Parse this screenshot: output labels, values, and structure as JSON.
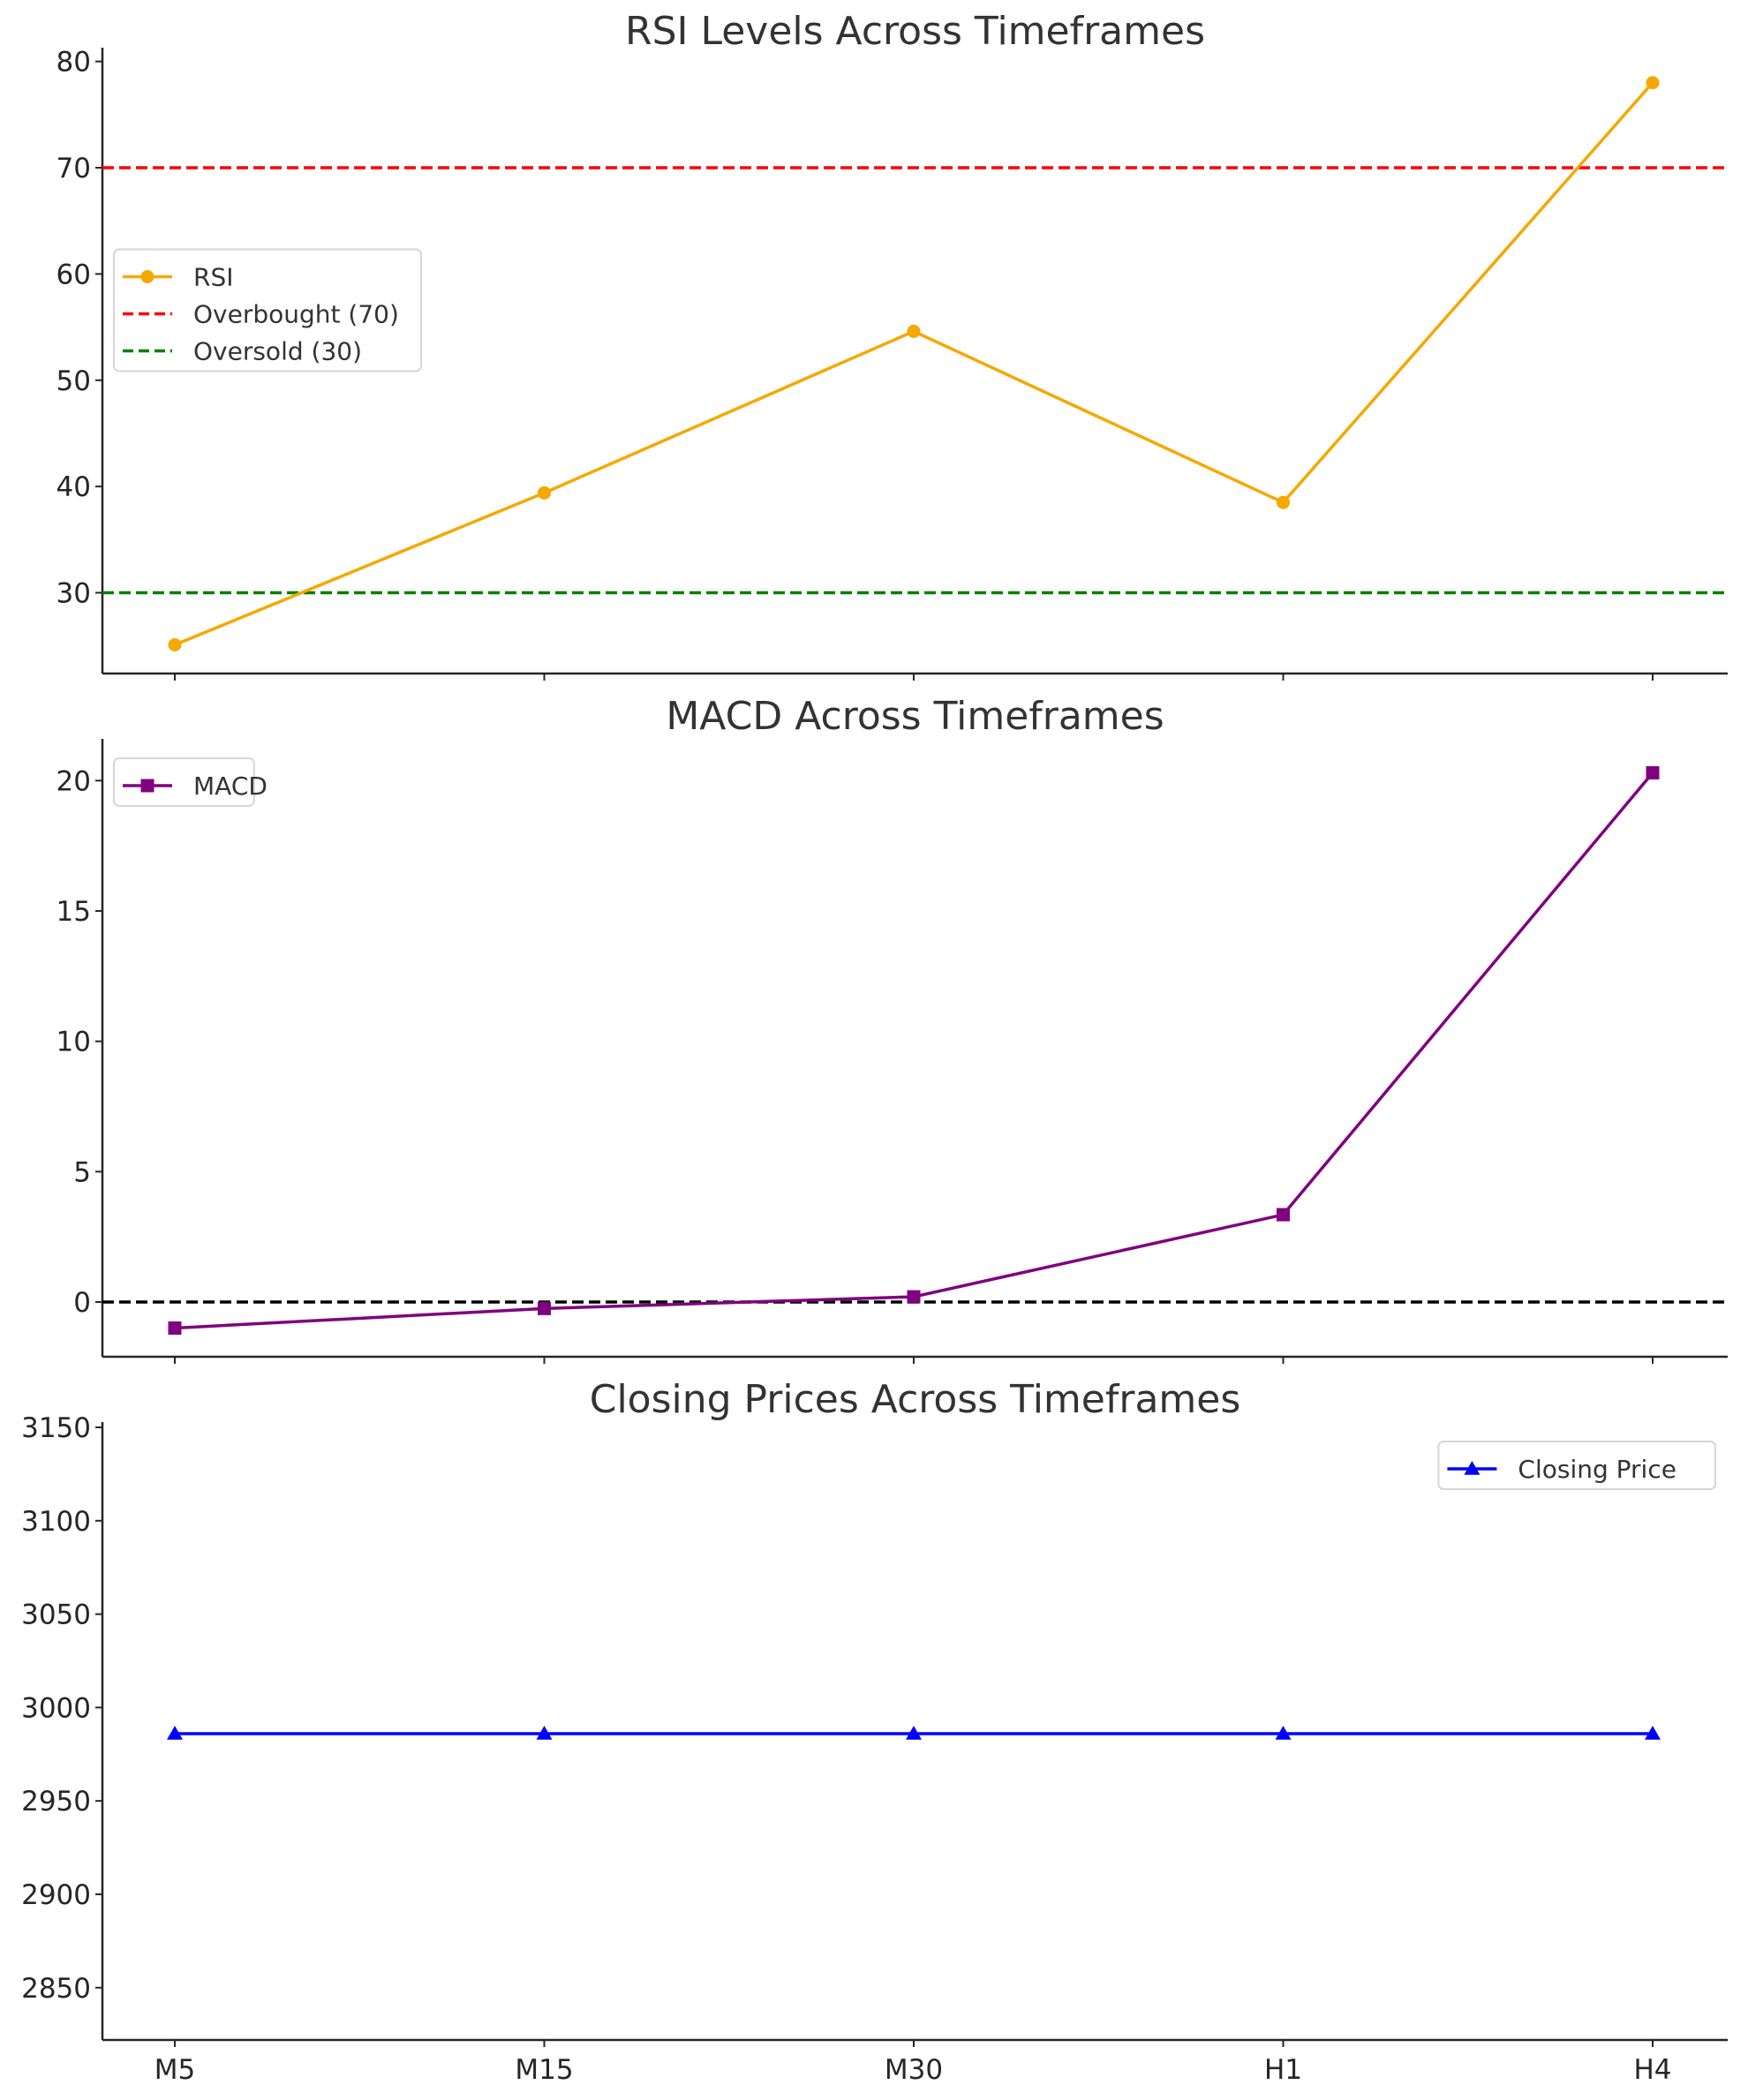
{
  "chart_data": [
    {
      "type": "line",
      "title": "RSI Levels Across Timeframes",
      "categories": [
        "M5",
        "M15",
        "M30",
        "H1",
        "H4"
      ],
      "ylim": [
        22.4,
        80.8
      ],
      "yticks": [
        30,
        40,
        50,
        60,
        70,
        80
      ],
      "series": [
        {
          "name": "RSI",
          "values": [
            25.1,
            39.4,
            54.6,
            38.5,
            78.0
          ],
          "color": "#f5a800",
          "marker": "circle"
        }
      ],
      "reference_lines": [
        {
          "name": "Overbought (70)",
          "y": 70,
          "color": "#ff0000",
          "style": "dashed"
        },
        {
          "name": "Oversold (30)",
          "y": 30,
          "color": "#008000",
          "style": "dashed"
        }
      ],
      "legend": [
        "RSI",
        "Overbought (70)",
        "Oversold (30)"
      ],
      "legend_position": "center-left",
      "grid": false
    },
    {
      "type": "line",
      "title": "MACD Across Timeframes",
      "categories": [
        "M5",
        "M15",
        "M30",
        "H1",
        "H4"
      ],
      "ylim": [
        -2.1,
        21.4
      ],
      "yticks": [
        0,
        5,
        10,
        15,
        20
      ],
      "series": [
        {
          "name": "MACD",
          "values": [
            -1.0,
            -0.25,
            0.2,
            3.35,
            20.3
          ],
          "color": "#800080",
          "marker": "square"
        }
      ],
      "reference_lines": [
        {
          "y": 0,
          "color": "#000000",
          "style": "dashed"
        }
      ],
      "legend": [
        "MACD"
      ],
      "legend_position": "top-left",
      "grid": false
    },
    {
      "type": "line",
      "title": "Closing Prices Across Timeframes",
      "categories": [
        "M5",
        "M15",
        "M30",
        "H1",
        "H4"
      ],
      "ylim": [
        2822,
        3150
      ],
      "yticks": [
        2850,
        2900,
        2950,
        3000,
        3050,
        3100,
        3150
      ],
      "series": [
        {
          "name": "Closing Price",
          "values": [
            2986,
            2986,
            2986,
            2986,
            2986
          ],
          "color": "#0000ff",
          "marker": "triangle"
        }
      ],
      "legend": [
        "Closing Price"
      ],
      "legend_position": "top-right",
      "grid": false
    }
  ]
}
